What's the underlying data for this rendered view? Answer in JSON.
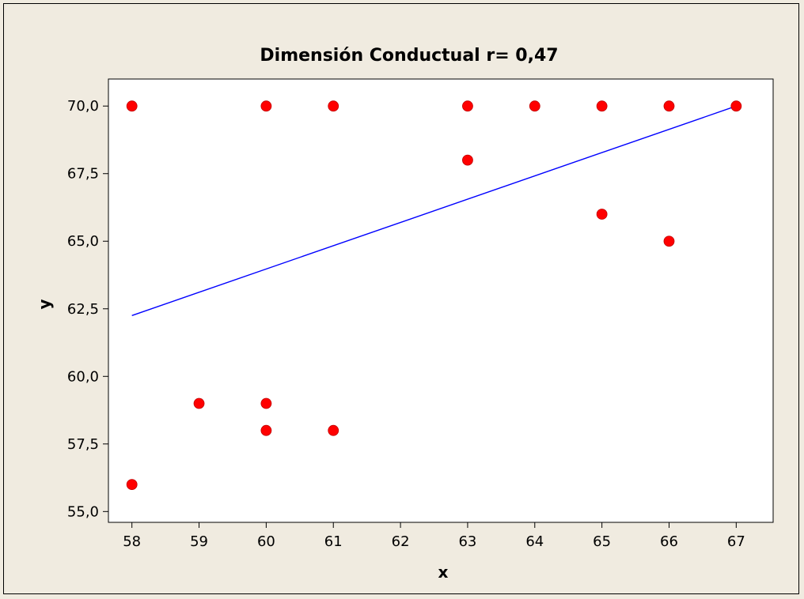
{
  "chart_data": {
    "type": "scatter",
    "title": "Dimensión Conductual r= 0,47",
    "xlabel": "x",
    "ylabel": "y",
    "xlim": [
      57.65,
      67.55
    ],
    "ylim": [
      54.6,
      71.0
    ],
    "x_ticks": [
      58,
      59,
      60,
      61,
      62,
      63,
      64,
      65,
      66,
      67
    ],
    "x_tick_labels": [
      "58",
      "59",
      "60",
      "61",
      "62",
      "63",
      "64",
      "65",
      "66",
      "67"
    ],
    "y_ticks": [
      55.0,
      57.5,
      60.0,
      62.5,
      65.0,
      67.5,
      70.0
    ],
    "y_tick_labels": [
      "55,0",
      "57,5",
      "60,0",
      "62,5",
      "65,0",
      "67,5",
      "70,0"
    ],
    "grid": false,
    "series": [
      {
        "marker_color": "#ff0000",
        "points": [
          {
            "x": 58,
            "y": 70.0
          },
          {
            "x": 58,
            "y": 56.0
          },
          {
            "x": 59,
            "y": 59.0
          },
          {
            "x": 60,
            "y": 70.0
          },
          {
            "x": 60,
            "y": 59.0
          },
          {
            "x": 60,
            "y": 58.0
          },
          {
            "x": 61,
            "y": 70.0
          },
          {
            "x": 61,
            "y": 58.0
          },
          {
            "x": 63,
            "y": 70.0
          },
          {
            "x": 63,
            "y": 68.0
          },
          {
            "x": 64,
            "y": 70.0
          },
          {
            "x": 65,
            "y": 70.0
          },
          {
            "x": 65,
            "y": 66.0
          },
          {
            "x": 66,
            "y": 70.0
          },
          {
            "x": 66,
            "y": 65.0
          },
          {
            "x": 67,
            "y": 70.0
          }
        ]
      }
    ],
    "fit_line": {
      "color": "#0000ff",
      "x": [
        58,
        67
      ],
      "y": [
        62.25,
        70.0
      ]
    }
  }
}
